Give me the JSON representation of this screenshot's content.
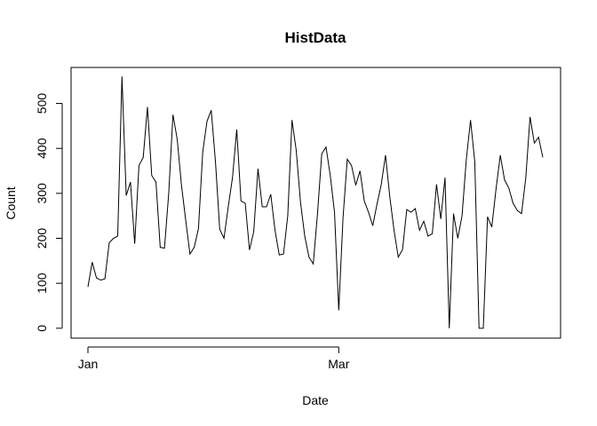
{
  "chart_data": {
    "type": "line",
    "title": "HistData",
    "xlabel": "Date",
    "ylabel": "Count",
    "x_ticks": [
      "Jan",
      "Mar"
    ],
    "x_tick_values": [
      "Jan",
      "Mar"
    ],
    "y_ticks": [
      0,
      100,
      200,
      300,
      400,
      500
    ],
    "ylim": [
      -22,
      580
    ],
    "grid": false,
    "legend": "none",
    "line_color": "#000000",
    "series": [
      {
        "values": [
          92,
          147,
          112,
          107,
          110,
          190,
          200,
          205,
          560,
          295,
          325,
          188,
          362,
          380,
          492,
          340,
          325,
          180,
          178,
          300,
          475,
          420,
          318,
          240,
          165,
          180,
          222,
          392,
          460,
          485,
          370,
          220,
          200,
          270,
          335,
          442,
          283,
          278,
          174,
          215,
          355,
          270,
          270,
          298,
          218,
          163,
          165,
          250,
          463,
          395,
          280,
          205,
          158,
          143,
          255,
          388,
          403,
          340,
          258,
          40,
          245,
          376,
          362,
          318,
          350,
          283,
          258,
          228,
          276,
          320,
          385,
          293,
          218,
          158,
          175,
          264,
          258,
          266,
          218,
          238,
          205,
          210,
          320,
          243,
          335,
          0,
          255,
          200,
          250,
          375,
          463,
          370,
          0,
          0,
          248,
          225,
          310,
          385,
          330,
          312,
          278,
          262,
          255,
          335,
          470,
          412,
          425,
          380
        ]
      }
    ]
  }
}
